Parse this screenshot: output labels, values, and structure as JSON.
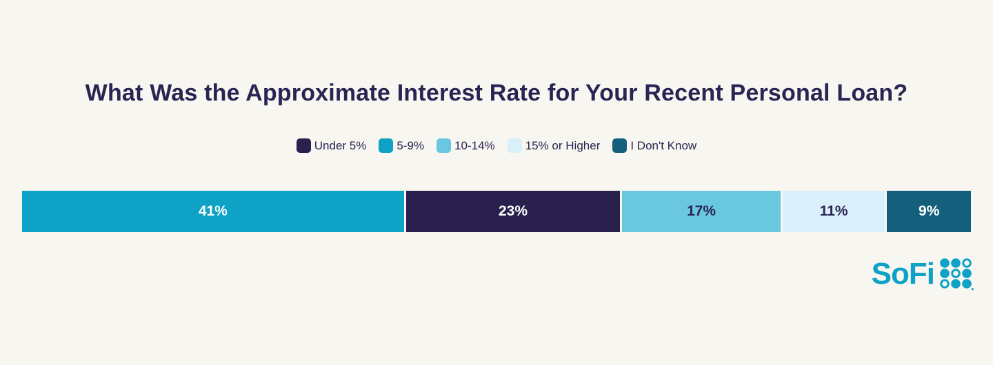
{
  "page": {
    "background_color": "#f8f6f0"
  },
  "title": "What Was the Approximate Interest Rate for Your Recent Personal Loan?",
  "title_color": "#2b2353",
  "legend": {
    "position": "top-center",
    "items": [
      {
        "label": "Under 5%",
        "color": "#29204e"
      },
      {
        "label": "5-9%",
        "color": "#0da2c6"
      },
      {
        "label": "10-14%",
        "color": "#69c7e0"
      },
      {
        "label": "15% or Higher",
        "color": "#d9eff9"
      },
      {
        "label": "I Don't Know",
        "color": "#14607c"
      }
    ]
  },
  "chart_data": {
    "type": "bar",
    "variant": "horizontal-stacked-percentage",
    "title": "What Was the Approximate Interest Rate for Your Recent Personal Loan?",
    "categories": [
      "5-9%",
      "Under 5%",
      "10-14%",
      "15% or Higher",
      "I Don't Know"
    ],
    "values": [
      41,
      23,
      17,
      11,
      9
    ],
    "grid": "off",
    "axes": "none",
    "legend_position": "top-center",
    "segments": [
      {
        "category": "5-9%",
        "value": 41,
        "label": "41%",
        "color": "#0da2c6",
        "text_color": "#ffffff"
      },
      {
        "category": "Under 5%",
        "value": 23,
        "label": "23%",
        "color": "#29204e",
        "text_color": "#ffffff"
      },
      {
        "category": "10-14%",
        "value": 17,
        "label": "17%",
        "color": "#69c7e0",
        "text_color": "#2b2353"
      },
      {
        "category": "15% or Higher",
        "value": 11,
        "label": "11%",
        "color": "#d9eff9",
        "text_color": "#2b2353"
      },
      {
        "category": "I Don't Know",
        "value": 9,
        "label": "9%",
        "color": "#14607c",
        "text_color": "#ffffff"
      }
    ]
  },
  "brand": {
    "name": "SoFi",
    "logo_color": "#0da2c6"
  }
}
